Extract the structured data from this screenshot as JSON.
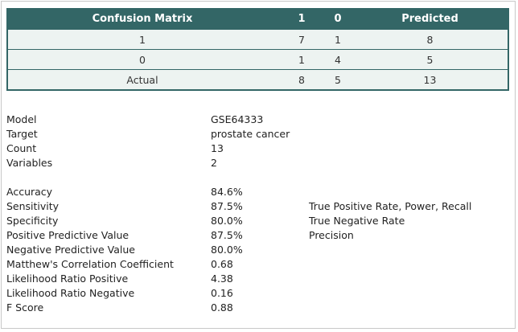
{
  "matrix": {
    "headers": [
      "Confusion Matrix",
      "1",
      "0",
      "Predicted"
    ],
    "rows": [
      [
        "1",
        "7",
        "1",
        "8"
      ],
      [
        "0",
        "1",
        "4",
        "5"
      ],
      [
        "Actual",
        "8",
        "5",
        "13"
      ]
    ]
  },
  "info": [
    {
      "label": "Model",
      "value": "GSE64333"
    },
    {
      "label": "Target",
      "value": "prostate cancer"
    },
    {
      "label": "Count",
      "value": "13"
    },
    {
      "label": "Variables",
      "value": "2"
    }
  ],
  "metrics": [
    {
      "label": "Accuracy",
      "value": "84.6%",
      "note": ""
    },
    {
      "label": "Sensitivity",
      "value": "87.5%",
      "note": "True Positive Rate, Power, Recall"
    },
    {
      "label": "Specificity",
      "value": "80.0%",
      "note": "True Negative Rate"
    },
    {
      "label": "Positive Predictive Value",
      "value": "87.5%",
      "note": "Precision"
    },
    {
      "label": "Negative Predictive Value",
      "value": "80.0%",
      "note": ""
    },
    {
      "label": "Matthew's Correlation Coefficient",
      "value": "0.68",
      "note": ""
    },
    {
      "label": "Likelihood Ratio Positive",
      "value": "4.38",
      "note": ""
    },
    {
      "label": "Likelihood Ratio Negative",
      "value": "0.16",
      "note": ""
    },
    {
      "label": "F Score",
      "value": "0.88",
      "note": ""
    }
  ],
  "colors": {
    "header": "#336666",
    "row": "#edf3f1"
  }
}
